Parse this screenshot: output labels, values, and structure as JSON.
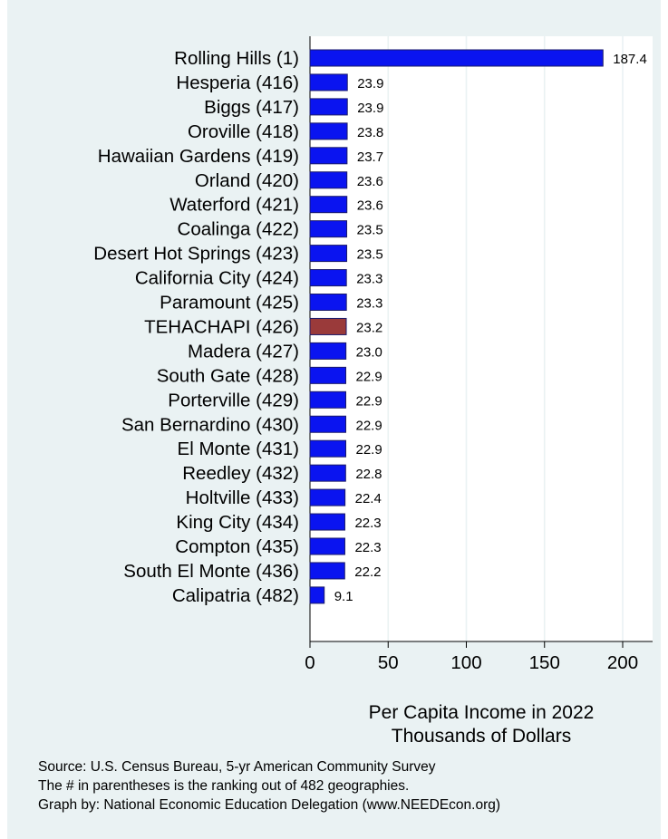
{
  "chart_data": {
    "type": "bar",
    "orientation": "horizontal",
    "categories": [
      "Rolling Hills  (1)",
      "Hesperia (416)",
      "Biggs (417)",
      "Oroville (418)",
      "Hawaiian Gardens (419)",
      "Orland (420)",
      "Waterford (421)",
      "Coalinga (422)",
      "Desert Hot Springs (423)",
      "California City (424)",
      "Paramount (425)",
      "TEHACHAPI (426)",
      "Madera (427)",
      "South Gate (428)",
      "Porterville (429)",
      "San Bernardino (430)",
      "El Monte (431)",
      "Reedley (432)",
      "Holtville (433)",
      "King City (434)",
      "Compton (435)",
      "South El Monte (436)",
      "Calipatria (482)"
    ],
    "values": [
      187.4,
      23.9,
      23.9,
      23.8,
      23.7,
      23.6,
      23.6,
      23.5,
      23.5,
      23.3,
      23.3,
      23.2,
      23.0,
      22.9,
      22.9,
      22.9,
      22.9,
      22.8,
      22.4,
      22.3,
      22.3,
      22.2,
      9.1
    ],
    "value_labels": [
      "187.4",
      "23.9",
      "23.9",
      "23.8",
      "23.7",
      "23.6",
      "23.6",
      "23.5",
      "23.5",
      "23.3",
      "23.3",
      "23.2",
      "23.0",
      "22.9",
      "22.9",
      "22.9",
      "22.9",
      "22.8",
      "22.4",
      "22.3",
      "22.3",
      "22.2",
      "9.1"
    ],
    "highlight_index": 11,
    "colors": {
      "bar": "#0a14f0",
      "highlight": "#9a3a3a",
      "bar_edge": "#1a1a6a",
      "background": "#eaf2f3",
      "grid": "#ffffff"
    },
    "xlim": [
      0,
      215
    ],
    "xticks": [
      0,
      50,
      100,
      150,
      200
    ],
    "xlabel_lines": [
      "Per Capita Income in 2022",
      "Thousands of Dollars"
    ],
    "grid": true
  },
  "source_lines": [
    "Source: U.S. Census Bureau, 5-yr American Community Survey",
    "The # in parentheses is the ranking out of 482 geographies.",
    "Graph by: National Economic Education Delegation (www.NEEDEcon.org)"
  ]
}
